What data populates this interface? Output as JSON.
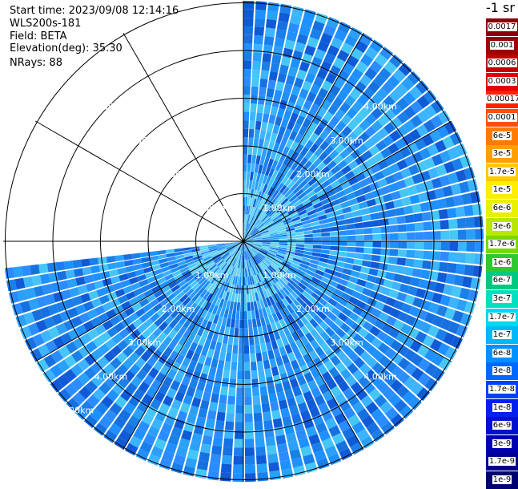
{
  "header": {
    "start_time": "Start time: 2023/09/08 12:14:16",
    "instrument": "WLS200s-181",
    "field": "Field: BETA",
    "elevation": "Elevation(deg): 35.30",
    "nrays": "NRays: 88"
  },
  "colorbar": {
    "title": "-1 sr",
    "labels": [
      "0.0017",
      "0.001",
      "0.0006",
      "0.0003",
      "0.00017",
      "0.0001",
      "6e-5",
      "3e-5",
      "1.7e-5",
      "1e-5",
      "6e-6",
      "3e-6",
      "1.7e-6",
      "1e-6",
      "6e-7",
      "3e-7",
      "1.7e-7",
      "1e-7",
      "6e-8",
      "3e-8",
      "1.7e-8",
      "1e-8",
      "6e-9",
      "3e-9",
      "1.7e-9",
      "1e-9"
    ],
    "colors": [
      "#8b0000",
      "#a00000",
      "#c00000",
      "#e00000",
      "#ff2000",
      "#ff5000",
      "#ff7a00",
      "#ffa000",
      "#ffc800",
      "#ffee00",
      "#e8f000",
      "#b8e800",
      "#7ad800",
      "#30c830",
      "#00c880",
      "#00e0c0",
      "#00d8f0",
      "#00b8f8",
      "#0090ff",
      "#0068ff",
      "#0040ff",
      "#0020f0",
      "#0010d0",
      "#0000b0",
      "#000090",
      "#000070"
    ]
  },
  "range_labels": {
    "r1": "1.00km",
    "r2": "2.00km",
    "r3": "3.00km",
    "r4": "4.00km",
    "r5": "5.00km"
  },
  "scan": {
    "arc_start_deg": 0,
    "arc_end_deg": 264,
    "palette": [
      "#1e90ff",
      "#1a7fe8",
      "#2aa0f8",
      "#3cb4ff",
      "#46c6f6",
      "#1670e0",
      "#0f5ad6",
      "#2b8cff"
    ]
  }
}
